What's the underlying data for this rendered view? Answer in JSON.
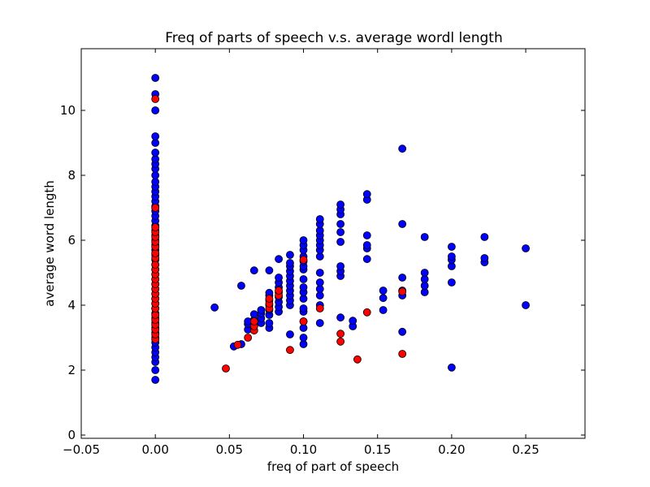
{
  "chart_data": {
    "type": "scatter",
    "title": "Freq of parts of speech v.s. average wordl length",
    "xlabel": "freq of part of speech",
    "ylabel": "average word length",
    "xlim": [
      -0.05,
      0.29
    ],
    "ylim": [
      -0.1,
      11.9
    ],
    "xticks": [
      -0.05,
      0.0,
      0.05,
      0.1,
      0.15,
      0.2,
      0.25
    ],
    "xtick_labels": [
      "−0.05",
      "0.00",
      "0.05",
      "0.10",
      "0.15",
      "0.20",
      "0.25"
    ],
    "yticks": [
      0,
      2,
      4,
      6,
      8,
      10
    ],
    "ytick_labels": [
      "0",
      "2",
      "4",
      "6",
      "8",
      "10"
    ],
    "grid": false,
    "series": [
      {
        "color": "#0000ff",
        "points": [
          [
            0.0,
            1.7
          ],
          [
            0.0,
            2.0
          ],
          [
            0.0,
            2.25
          ],
          [
            0.0,
            2.4
          ],
          [
            0.0,
            2.55
          ],
          [
            0.0,
            2.7
          ],
          [
            0.0,
            2.85
          ],
          [
            0.0,
            3.0
          ],
          [
            0.0,
            3.15
          ],
          [
            0.0,
            3.3
          ],
          [
            0.0,
            3.45
          ],
          [
            0.0,
            3.6
          ],
          [
            0.0,
            3.75
          ],
          [
            0.0,
            3.9
          ],
          [
            0.0,
            4.05
          ],
          [
            0.0,
            4.2
          ],
          [
            0.0,
            4.35
          ],
          [
            0.0,
            4.5
          ],
          [
            0.0,
            4.65
          ],
          [
            0.0,
            4.8
          ],
          [
            0.0,
            4.95
          ],
          [
            0.0,
            5.1
          ],
          [
            0.0,
            5.25
          ],
          [
            0.0,
            5.4
          ],
          [
            0.0,
            5.55
          ],
          [
            0.0,
            5.7
          ],
          [
            0.0,
            5.85
          ],
          [
            0.0,
            6.0
          ],
          [
            0.0,
            6.15
          ],
          [
            0.0,
            6.3
          ],
          [
            0.0,
            6.45
          ],
          [
            0.0,
            6.6
          ],
          [
            0.0,
            6.75
          ],
          [
            0.0,
            6.9
          ],
          [
            0.0,
            7.05
          ],
          [
            0.0,
            7.2
          ],
          [
            0.0,
            7.35
          ],
          [
            0.0,
            7.5
          ],
          [
            0.0,
            7.65
          ],
          [
            0.0,
            7.8
          ],
          [
            0.0,
            8.0
          ],
          [
            0.0,
            8.2
          ],
          [
            0.0,
            8.35
          ],
          [
            0.0,
            8.5
          ],
          [
            0.0,
            8.7
          ],
          [
            0.0,
            9.0
          ],
          [
            0.0,
            9.2
          ],
          [
            0.0,
            10.0
          ],
          [
            0.0,
            10.5
          ],
          [
            0.0,
            11.0
          ],
          [
            0.04,
            3.93
          ],
          [
            0.053,
            2.73
          ],
          [
            0.058,
            2.8
          ],
          [
            0.058,
            4.6
          ],
          [
            0.0625,
            3.25
          ],
          [
            0.0625,
            3.42
          ],
          [
            0.0625,
            3.5
          ],
          [
            0.0667,
            3.4
          ],
          [
            0.0667,
            3.55
          ],
          [
            0.0667,
            3.72
          ],
          [
            0.0667,
            5.07
          ],
          [
            0.0714,
            3.45
          ],
          [
            0.0714,
            3.6
          ],
          [
            0.0714,
            3.75
          ],
          [
            0.0714,
            3.85
          ],
          [
            0.0769,
            3.3
          ],
          [
            0.0769,
            3.45
          ],
          [
            0.0769,
            3.7
          ],
          [
            0.0769,
            3.85
          ],
          [
            0.0769,
            4.0
          ],
          [
            0.0769,
            4.15
          ],
          [
            0.0769,
            4.3
          ],
          [
            0.0769,
            4.38
          ],
          [
            0.0769,
            5.07
          ],
          [
            0.0833,
            3.8
          ],
          [
            0.0833,
            3.95
          ],
          [
            0.0833,
            4.1
          ],
          [
            0.0833,
            4.25
          ],
          [
            0.0833,
            4.4
          ],
          [
            0.0833,
            4.55
          ],
          [
            0.0833,
            4.7
          ],
          [
            0.0833,
            4.85
          ],
          [
            0.0833,
            5.42
          ],
          [
            0.0909,
            3.1
          ],
          [
            0.0909,
            4.0
          ],
          [
            0.0909,
            4.15
          ],
          [
            0.0909,
            4.3
          ],
          [
            0.0909,
            4.45
          ],
          [
            0.0909,
            4.6
          ],
          [
            0.0909,
            4.75
          ],
          [
            0.0909,
            4.9
          ],
          [
            0.0909,
            5.05
          ],
          [
            0.0909,
            5.2
          ],
          [
            0.0909,
            5.3
          ],
          [
            0.0909,
            5.55
          ],
          [
            0.1,
            2.8
          ],
          [
            0.1,
            3.0
          ],
          [
            0.1,
            3.3
          ],
          [
            0.1,
            3.5
          ],
          [
            0.1,
            3.8
          ],
          [
            0.1,
            3.9
          ],
          [
            0.1,
            4.2
          ],
          [
            0.1,
            4.4
          ],
          [
            0.1,
            4.55
          ],
          [
            0.1,
            4.8
          ],
          [
            0.1,
            5.1
          ],
          [
            0.1,
            5.2
          ],
          [
            0.1,
            5.35
          ],
          [
            0.1,
            5.5
          ],
          [
            0.1,
            5.7
          ],
          [
            0.1,
            5.85
          ],
          [
            0.1,
            6.0
          ],
          [
            0.1111,
            3.45
          ],
          [
            0.1111,
            4.0
          ],
          [
            0.1111,
            4.3
          ],
          [
            0.1111,
            4.5
          ],
          [
            0.1111,
            4.7
          ],
          [
            0.1111,
            5.0
          ],
          [
            0.1111,
            5.5
          ],
          [
            0.1111,
            5.7
          ],
          [
            0.1111,
            5.85
          ],
          [
            0.1111,
            6.0
          ],
          [
            0.1111,
            6.15
          ],
          [
            0.1111,
            6.3
          ],
          [
            0.1111,
            6.5
          ],
          [
            0.1111,
            6.65
          ],
          [
            0.125,
            3.62
          ],
          [
            0.125,
            4.9
          ],
          [
            0.125,
            5.05
          ],
          [
            0.125,
            5.2
          ],
          [
            0.125,
            5.95
          ],
          [
            0.125,
            6.25
          ],
          [
            0.125,
            6.5
          ],
          [
            0.125,
            6.8
          ],
          [
            0.125,
            6.95
          ],
          [
            0.125,
            7.1
          ],
          [
            0.1333,
            3.35
          ],
          [
            0.1333,
            3.52
          ],
          [
            0.1429,
            5.42
          ],
          [
            0.1429,
            5.75
          ],
          [
            0.1429,
            5.85
          ],
          [
            0.1429,
            6.15
          ],
          [
            0.1429,
            7.25
          ],
          [
            0.1429,
            7.42
          ],
          [
            0.1538,
            3.85
          ],
          [
            0.1538,
            4.22
          ],
          [
            0.1538,
            4.45
          ],
          [
            0.1667,
            3.18
          ],
          [
            0.1667,
            4.3
          ],
          [
            0.1667,
            4.45
          ],
          [
            0.1667,
            4.85
          ],
          [
            0.1667,
            6.5
          ],
          [
            0.1667,
            8.82
          ],
          [
            0.1818,
            4.4
          ],
          [
            0.1818,
            4.6
          ],
          [
            0.1818,
            4.8
          ],
          [
            0.1818,
            5.0
          ],
          [
            0.1818,
            6.1
          ],
          [
            0.2,
            2.08
          ],
          [
            0.2,
            4.7
          ],
          [
            0.2,
            5.2
          ],
          [
            0.2,
            5.4
          ],
          [
            0.2,
            5.5
          ],
          [
            0.2,
            5.8
          ],
          [
            0.2222,
            5.32
          ],
          [
            0.2222,
            5.45
          ],
          [
            0.2222,
            6.1
          ],
          [
            0.25,
            4.0
          ],
          [
            0.25,
            5.75
          ]
        ]
      },
      {
        "color": "#ff0000",
        "points": [
          [
            0.0,
            2.95
          ],
          [
            0.0,
            3.1
          ],
          [
            0.0,
            3.25
          ],
          [
            0.0,
            3.4
          ],
          [
            0.0,
            3.55
          ],
          [
            0.0,
            3.7
          ],
          [
            0.0,
            3.9
          ],
          [
            0.0,
            4.05
          ],
          [
            0.0,
            4.2
          ],
          [
            0.0,
            4.35
          ],
          [
            0.0,
            4.5
          ],
          [
            0.0,
            4.65
          ],
          [
            0.0,
            4.8
          ],
          [
            0.0,
            4.95
          ],
          [
            0.0,
            5.1
          ],
          [
            0.0,
            5.25
          ],
          [
            0.0,
            5.45
          ],
          [
            0.0,
            5.6
          ],
          [
            0.0,
            5.8
          ],
          [
            0.0,
            5.95
          ],
          [
            0.0,
            6.1
          ],
          [
            0.0,
            6.25
          ],
          [
            0.0,
            6.4
          ],
          [
            0.0,
            7.0
          ],
          [
            0.0,
            10.35
          ],
          [
            0.0476,
            2.05
          ],
          [
            0.0556,
            2.78
          ],
          [
            0.0625,
            3.0
          ],
          [
            0.0667,
            3.22
          ],
          [
            0.0667,
            3.35
          ],
          [
            0.0667,
            3.5
          ],
          [
            0.0769,
            3.9
          ],
          [
            0.0769,
            4.05
          ],
          [
            0.0769,
            4.2
          ],
          [
            0.0833,
            4.3
          ],
          [
            0.0833,
            4.45
          ],
          [
            0.0909,
            2.62
          ],
          [
            0.1,
            3.5
          ],
          [
            0.1,
            5.4
          ],
          [
            0.1111,
            3.9
          ],
          [
            0.125,
            2.88
          ],
          [
            0.125,
            3.12
          ],
          [
            0.1364,
            2.33
          ],
          [
            0.1429,
            3.78
          ],
          [
            0.1667,
            2.5
          ],
          [
            0.1667,
            4.42
          ]
        ]
      }
    ]
  }
}
